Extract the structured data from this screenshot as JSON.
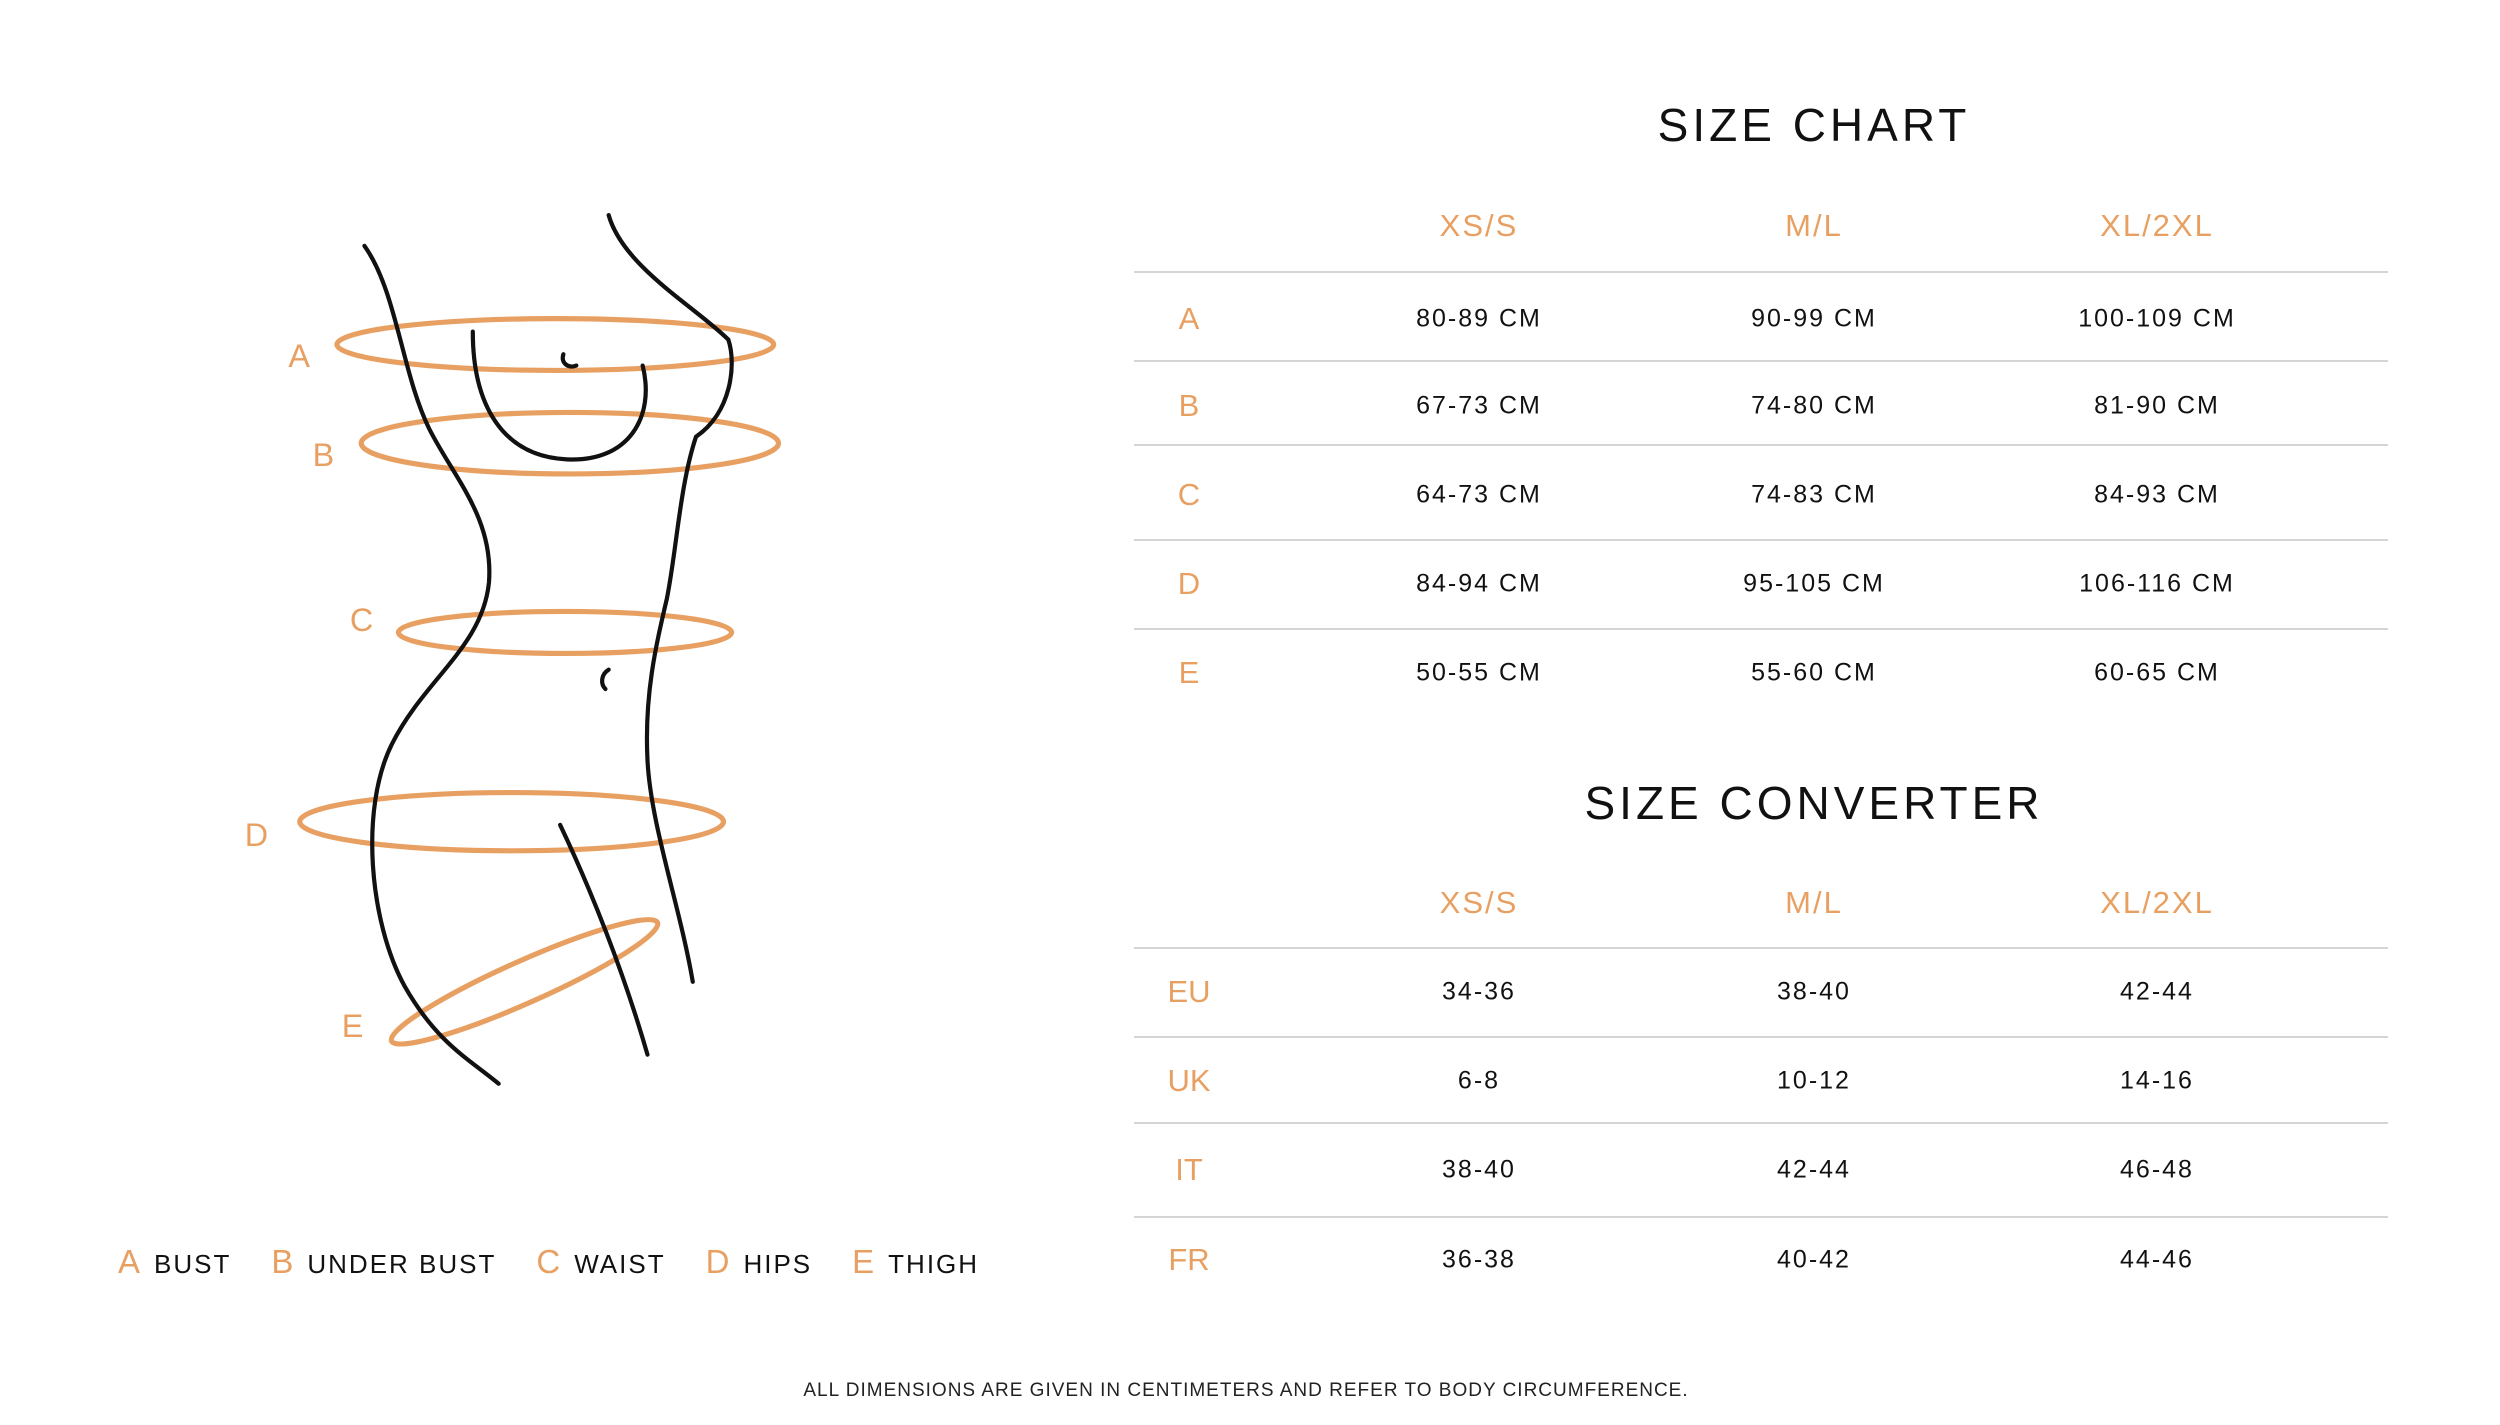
{
  "accent_color": "#E8A062",
  "figure": {
    "markers": [
      "A",
      "B",
      "C",
      "D",
      "E"
    ]
  },
  "size_chart": {
    "title": "SIZE CHART",
    "columns": [
      "XS/S",
      "M/L",
      "XL/2XL"
    ],
    "rows": [
      {
        "label": "A",
        "values": [
          "80-89 CM",
          "90-99 CM",
          "100-109 CM"
        ]
      },
      {
        "label": "B",
        "values": [
          "67-73 CM",
          "74-80 CM",
          "81-90 CM"
        ]
      },
      {
        "label": "C",
        "values": [
          "64-73 CM",
          "74-83 CM",
          "84-93 CM"
        ]
      },
      {
        "label": "D",
        "values": [
          "84-94 CM",
          "95-105 CM",
          "106-116 CM"
        ]
      },
      {
        "label": "E",
        "values": [
          "50-55 CM",
          "55-60 CM",
          "60-65 CM"
        ]
      }
    ]
  },
  "size_converter": {
    "title": "SIZE CONVERTER",
    "columns": [
      "XS/S",
      "M/L",
      "XL/2XL"
    ],
    "rows": [
      {
        "label": "EU",
        "values": [
          "34-36",
          "38-40",
          "42-44"
        ]
      },
      {
        "label": "UK",
        "values": [
          "6-8",
          "10-12",
          "14-16"
        ]
      },
      {
        "label": "IT",
        "values": [
          "38-40",
          "42-44",
          "46-48"
        ]
      },
      {
        "label": "FR",
        "values": [
          "36-38",
          "40-42",
          "44-46"
        ]
      }
    ]
  },
  "legend": [
    {
      "key": "A",
      "label": "BUST"
    },
    {
      "key": "B",
      "label": "UNDER BUST"
    },
    {
      "key": "C",
      "label": "WAIST"
    },
    {
      "key": "D",
      "label": "HIPS"
    },
    {
      "key": "E",
      "label": "THIGH"
    }
  ],
  "footer": "ALL DIMENSIONS ARE GIVEN IN CENTIMETERS AND REFER TO BODY CIRCUMFERENCE."
}
